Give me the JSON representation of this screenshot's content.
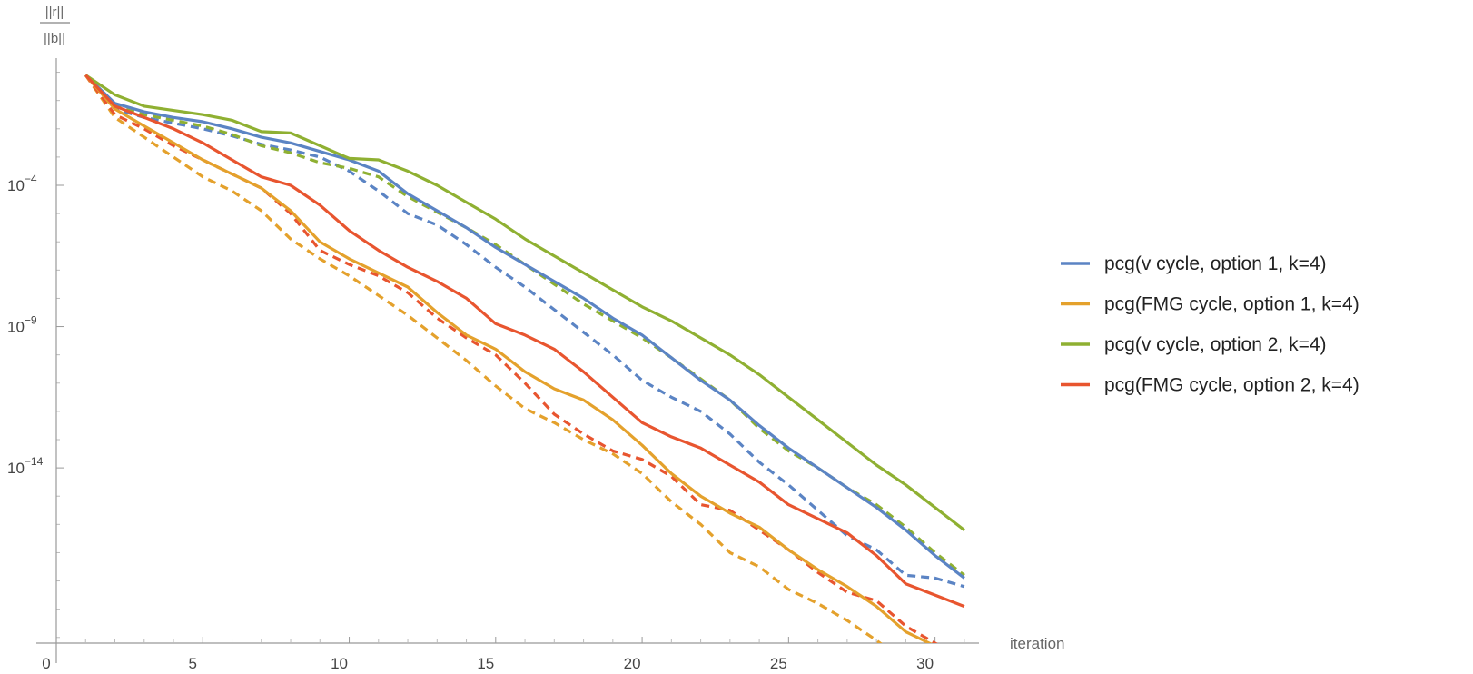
{
  "chart_data": {
    "type": "line",
    "xlabel": "iteration",
    "ylabel": {
      "numerator": "||r||",
      "denominator": "||b||"
    },
    "x_scale": "linear",
    "y_scale": "log",
    "xlim": [
      0,
      31.5
    ],
    "ylim_log10": [
      -20.2,
      0.5
    ],
    "x_ticks": [
      0,
      5,
      10,
      15,
      20,
      25,
      30
    ],
    "x_tick_labels": [
      "0",
      "5",
      "10",
      "15",
      "20",
      "25",
      "30"
    ],
    "y_ticks_log10": [
      -4,
      -9,
      -14
    ],
    "y_tick_labels": [
      {
        "base": "10",
        "exp": "−4"
      },
      {
        "base": "10",
        "exp": "−9"
      },
      {
        "base": "10",
        "exp": "−14"
      }
    ],
    "legend_position": "right",
    "x": [
      1,
      2,
      3,
      4,
      5,
      6,
      7,
      8,
      9,
      10,
      11,
      12,
      13,
      14,
      15,
      16,
      17,
      18,
      19,
      20,
      21,
      22,
      23,
      24,
      25,
      26,
      27,
      28,
      29,
      30,
      31
    ],
    "series": [
      {
        "name": "pcg(v cycle, option 1, k=4)",
        "color": "#5b84c4",
        "dash": "solid",
        "log10_values": [
          -0.1,
          -1.1,
          -1.4,
          -1.6,
          -1.75,
          -2.0,
          -2.3,
          -2.5,
          -2.8,
          -3.1,
          -3.5,
          -4.3,
          -4.9,
          -5.5,
          -6.2,
          -6.8,
          -7.4,
          -8.0,
          -8.7,
          -9.3,
          -10.1,
          -10.9,
          -11.6,
          -12.5,
          -13.3,
          -14.0,
          -14.7,
          -15.4,
          -16.2,
          -17.1,
          -17.9
        ]
      },
      {
        "name": "pcg(FMG cycle, option 1, k=4)",
        "color": "#e4a12c",
        "dash": "solid",
        "log10_values": [
          -0.1,
          -1.3,
          -1.9,
          -2.5,
          -3.1,
          -3.6,
          -4.1,
          -4.9,
          -6.0,
          -6.6,
          -7.1,
          -7.6,
          -8.5,
          -9.3,
          -9.8,
          -10.6,
          -11.2,
          -11.6,
          -12.3,
          -13.2,
          -14.2,
          -15.0,
          -15.6,
          -16.1,
          -16.9,
          -17.6,
          -18.2,
          -18.9,
          -19.8,
          -20.3,
          -20.6
        ]
      },
      {
        "name": "pcg(v cycle, option 2, k=4)",
        "color": "#8fb032",
        "dash": "solid",
        "log10_values": [
          -0.1,
          -0.8,
          -1.2,
          -1.35,
          -1.5,
          -1.7,
          -2.1,
          -2.15,
          -2.6,
          -3.05,
          -3.1,
          -3.5,
          -4.0,
          -4.6,
          -5.2,
          -5.9,
          -6.5,
          -7.1,
          -7.7,
          -8.3,
          -8.8,
          -9.4,
          -10.0,
          -10.7,
          -11.5,
          -12.3,
          -13.1,
          -13.9,
          -14.6,
          -15.4,
          -16.2
        ]
      },
      {
        "name": "pcg(FMG cycle, option 2, k=4)",
        "color": "#e8552f",
        "dash": "solid",
        "log10_values": [
          -0.1,
          -1.2,
          -1.6,
          -2.0,
          -2.5,
          -3.1,
          -3.7,
          -4.0,
          -4.7,
          -5.6,
          -6.3,
          -6.9,
          -7.4,
          -8.0,
          -8.9,
          -9.3,
          -9.8,
          -10.6,
          -11.5,
          -12.4,
          -12.9,
          -13.3,
          -13.9,
          -14.5,
          -15.3,
          -15.8,
          -16.3,
          -17.1,
          -18.1,
          -18.5,
          -18.9
        ]
      },
      {
        "name": "",
        "color": "#5b84c4",
        "dash": "dashed",
        "log10_values": [
          -0.1,
          -1.3,
          -1.6,
          -1.8,
          -2.0,
          -2.25,
          -2.55,
          -2.75,
          -3.0,
          -3.5,
          -4.2,
          -5.0,
          -5.4,
          -6.1,
          -6.9,
          -7.6,
          -8.4,
          -9.2,
          -10.0,
          -10.9,
          -11.5,
          -12.0,
          -12.8,
          -13.8,
          -14.6,
          -15.5,
          -16.4,
          -16.9,
          -17.8,
          -17.9,
          -18.2
        ]
      },
      {
        "name": "",
        "color": "#e4a12c",
        "dash": "dashed",
        "log10_values": [
          -0.1,
          -1.6,
          -2.3,
          -3.0,
          -3.7,
          -4.2,
          -4.9,
          -5.9,
          -6.6,
          -7.2,
          -7.9,
          -8.6,
          -9.4,
          -10.2,
          -11.1,
          -11.9,
          -12.4,
          -13.0,
          -13.5,
          -14.2,
          -15.2,
          -16.0,
          -17.0,
          -17.5,
          -18.3,
          -18.8,
          -19.4,
          -20.1,
          -20.9
        ]
      },
      {
        "name": "",
        "color": "#8fb032",
        "dash": "dashed",
        "log10_values": [
          -0.1,
          -1.2,
          -1.5,
          -1.7,
          -1.9,
          -2.2,
          -2.6,
          -2.85,
          -3.2,
          -3.4,
          -3.7,
          -4.4,
          -4.95,
          -5.5,
          -6.1,
          -6.8,
          -7.5,
          -8.2,
          -8.8,
          -9.4,
          -10.1,
          -10.85,
          -11.6,
          -12.6,
          -13.4,
          -14.0,
          -14.7,
          -15.3,
          -16.1,
          -17.0,
          -17.8
        ]
      },
      {
        "name": "",
        "color": "#e8552f",
        "dash": "dashed",
        "log10_values": [
          -0.1,
          -1.5,
          -2.0,
          -2.6,
          -3.1,
          -3.6,
          -4.1,
          -5.0,
          -6.3,
          -6.8,
          -7.2,
          -7.8,
          -8.7,
          -9.4,
          -10.0,
          -11.0,
          -12.1,
          -12.8,
          -13.4,
          -13.7,
          -14.3,
          -15.3,
          -15.5,
          -16.2,
          -16.9,
          -17.7,
          -18.4,
          -18.7,
          -19.6,
          -20.2,
          -20.8
        ]
      }
    ]
  }
}
